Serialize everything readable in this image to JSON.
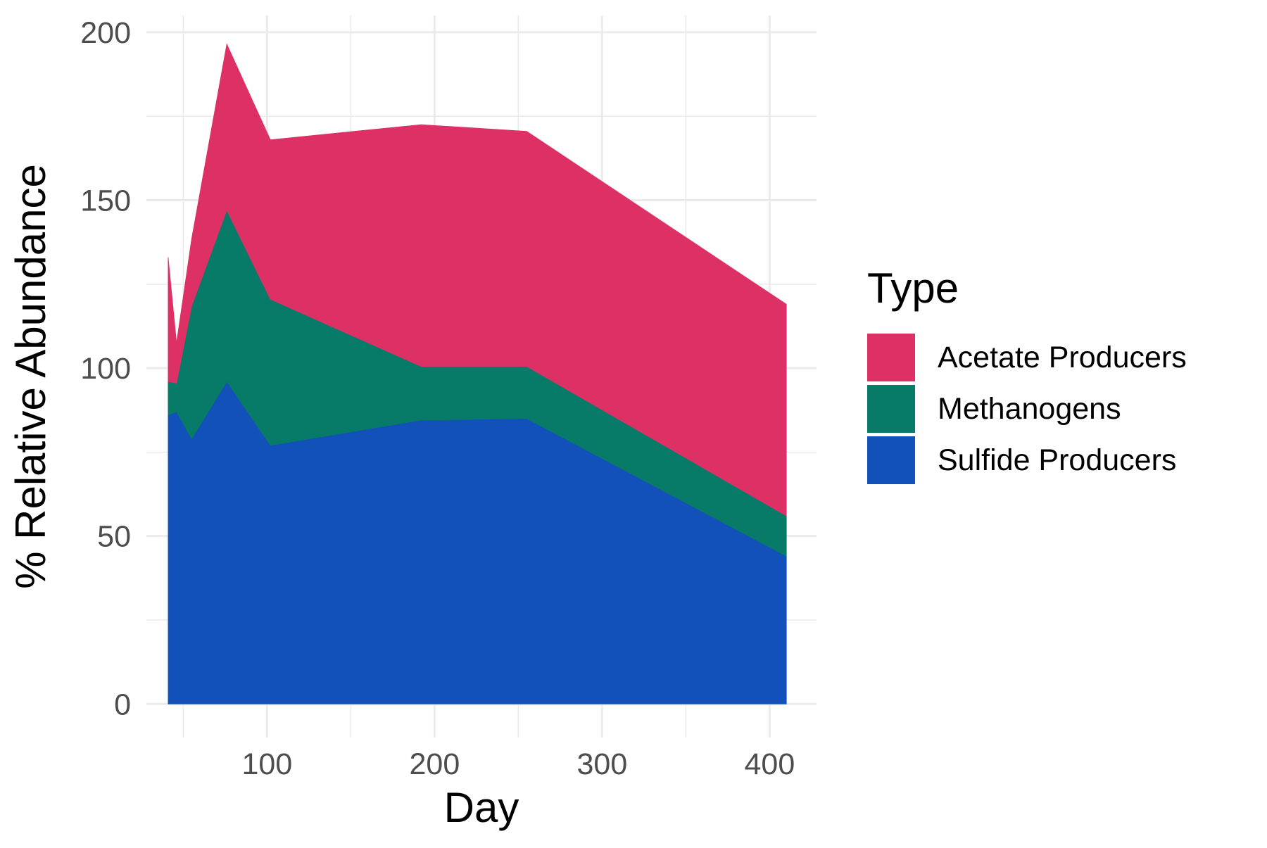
{
  "chart_data": {
    "type": "area",
    "stacked": true,
    "xlabel": "Day",
    "ylabel": "% Relative Abundance",
    "xlim": [
      28,
      428
    ],
    "ylim": [
      -10,
      205
    ],
    "x_ticks": [
      100,
      200,
      300,
      400
    ],
    "y_ticks": [
      0,
      50,
      100,
      150,
      200
    ],
    "x_minor": [
      50,
      150,
      250,
      350
    ],
    "y_minor": [
      25,
      75,
      125,
      175
    ],
    "grid": true,
    "legend": {
      "title": "Type",
      "position": "right",
      "entries": [
        "Acetate Producers",
        "Methanogens",
        "Sulfide Producers"
      ]
    },
    "x": [
      41,
      46,
      55,
      76,
      102,
      192,
      255,
      410
    ],
    "series": [
      {
        "name": "Sulfide Producers",
        "color": "#1351BA",
        "values": [
          86,
          87,
          79,
          96,
          77,
          84.5,
          85,
          44
        ]
      },
      {
        "name": "Methanogens",
        "color": "#077A68",
        "values": [
          10,
          8.5,
          39.5,
          51,
          43.5,
          16,
          15.5,
          12
        ]
      },
      {
        "name": "Acetate Producers",
        "color": "#DD3166",
        "values": [
          37,
          12,
          20,
          49.5,
          47.5,
          72,
          70,
          63
        ]
      }
    ]
  }
}
